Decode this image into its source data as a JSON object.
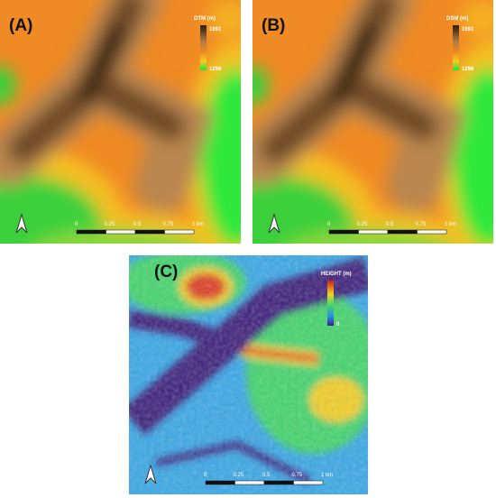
{
  "panels": [
    {
      "label": "(A)",
      "legend": {
        "title": "DTM (m)",
        "max": "1691",
        "min": "1296"
      },
      "scale": [
        "0",
        "0.25",
        "0.5",
        "0.75",
        "1 km"
      ]
    },
    {
      "label": "(B)",
      "legend": {
        "title": "DSM (m)",
        "max": "1691",
        "min": "1296"
      },
      "scale": [
        "0",
        "0.25",
        "0.5",
        "0.75",
        "1 km"
      ]
    },
    {
      "label": "(C)",
      "legend": {
        "title": "HEIGHT (m)",
        "min": "0"
      },
      "scale": [
        "0",
        "0.25",
        "0.5",
        "0.75",
        "1 km"
      ]
    }
  ]
}
